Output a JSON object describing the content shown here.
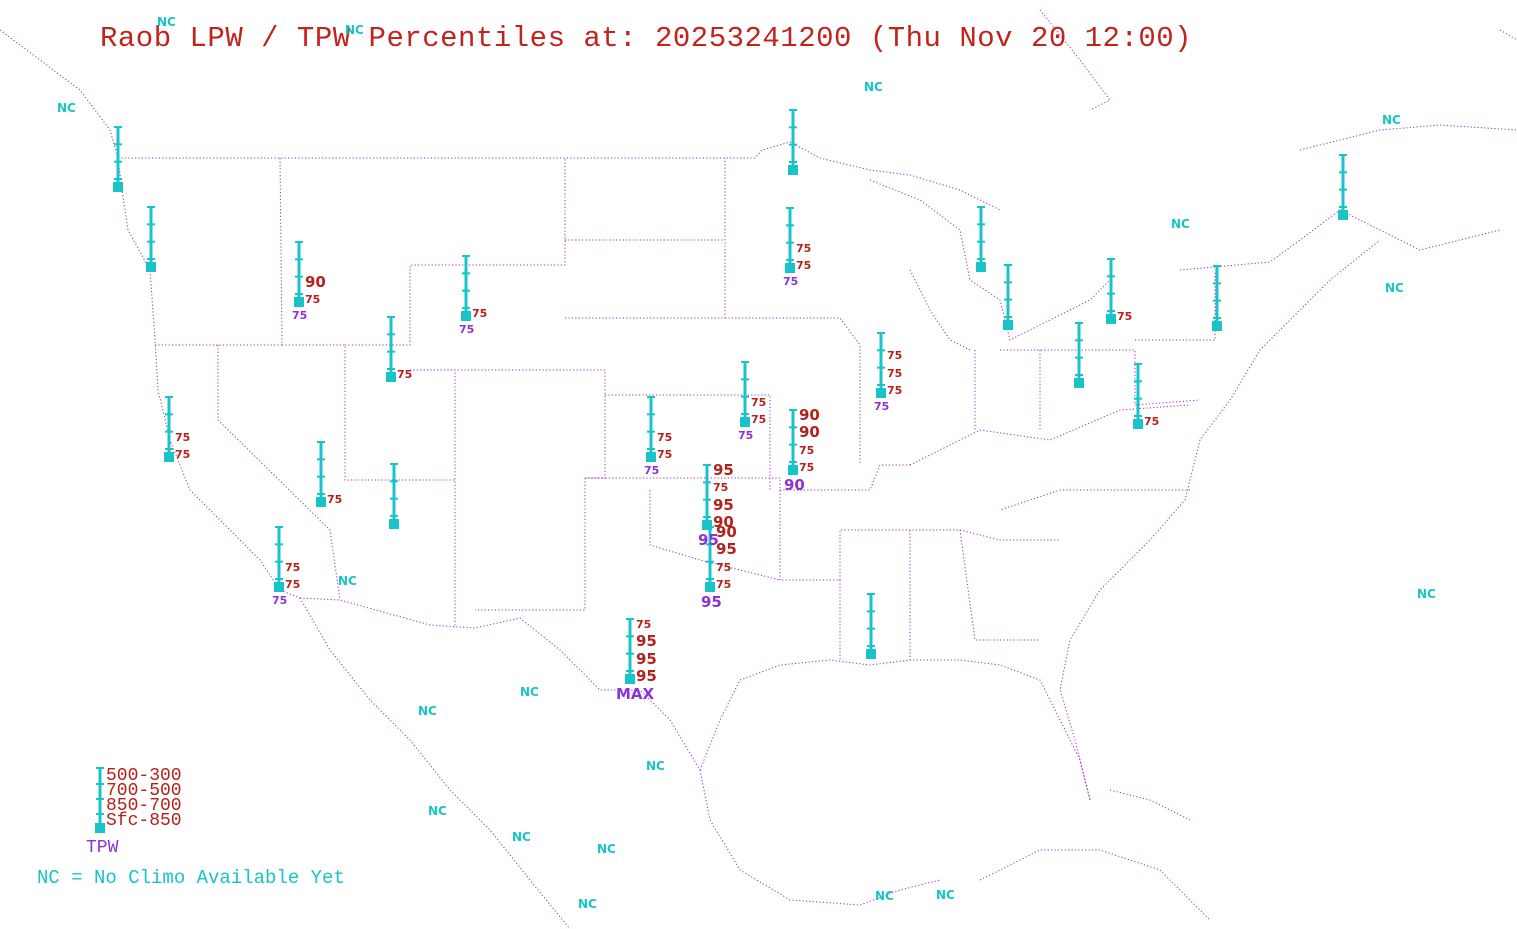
{
  "title": "Raob LPW / TPW Percentiles at: 20253241200 (Thu Nov 20 12:00)",
  "colors": {
    "station": "#19c4c9",
    "layer_percentile": "#b5211b",
    "tpw_percentile": "#8c33d6",
    "map_lines": "#9b2fb7",
    "title": "#c0241c"
  },
  "nc_label": "NC",
  "stations": [
    {
      "layers": [],
      "tpw": ""
    },
    {
      "layers": [],
      "tpw": ""
    },
    {
      "layers": [
        "",
        "",
        "90",
        "75"
      ],
      "tpw": "75"
    },
    {
      "layers": [
        "",
        "",
        "",
        "75"
      ],
      "tpw": ""
    },
    {
      "layers": [
        "",
        "",
        "",
        "75"
      ],
      "tpw": "75"
    },
    {
      "layers": [
        "",
        "",
        "75",
        "75"
      ],
      "tpw": ""
    },
    {
      "layers": [
        "",
        "",
        "",
        "75"
      ],
      "tpw": ""
    },
    {
      "layers": [],
      "tpw": ""
    },
    {
      "layers": [
        "",
        "",
        "75",
        "75"
      ],
      "tpw": "75"
    },
    {
      "layers": [],
      "tpw": ""
    },
    {
      "layers": [
        "",
        "",
        "75",
        "75"
      ],
      "tpw": "75"
    },
    {
      "layers": [
        "",
        "",
        "75",
        "75"
      ],
      "tpw": "75"
    },
    {
      "layers": [
        "",
        "",
        "75",
        "75"
      ],
      "tpw": "75"
    },
    {
      "layers": [
        "90",
        "90",
        "75",
        "75"
      ],
      "tpw": "90"
    },
    {
      "layers": [
        "95",
        "75",
        "95",
        "90"
      ],
      "tpw": "95"
    },
    {
      "layers": [
        "90",
        "95",
        "75",
        "75"
      ],
      "tpw": "95"
    },
    {
      "layers": [
        "75",
        "95",
        "95",
        "95"
      ],
      "tpw": "MAX"
    },
    {
      "layers": [
        "",
        "75",
        "75",
        "75"
      ],
      "tpw": "75"
    },
    {
      "layers": [],
      "tpw": ""
    },
    {
      "layers": [],
      "tpw": ""
    },
    {
      "layers": [],
      "tpw": ""
    },
    {
      "layers": [
        "",
        "",
        "",
        "75"
      ],
      "tpw": ""
    },
    {
      "layers": [],
      "tpw": ""
    },
    {
      "layers": [
        "",
        "",
        "",
        "75"
      ],
      "tpw": ""
    },
    {
      "layers": [],
      "tpw": ""
    },
    {
      "layers": [],
      "tpw": ""
    }
  ],
  "legend": {
    "layers": [
      "500-300",
      "700-500",
      "850-700",
      "Sfc-850"
    ],
    "tpw": "TPW",
    "note": "NC = No Climo Available Yet"
  }
}
